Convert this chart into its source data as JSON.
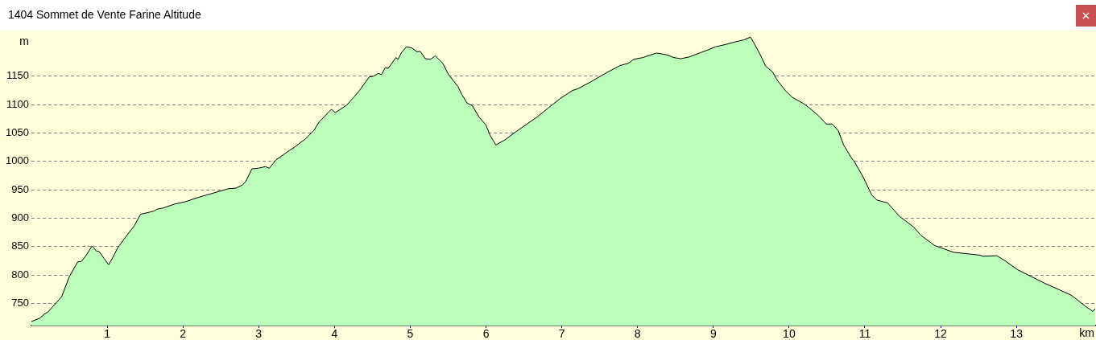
{
  "chart_data": {
    "type": "area",
    "title": "1404 Sommet de Vente Farine Altitude",
    "xlabel": "km",
    "ylabel": "m",
    "color": "#bbffbb",
    "x": [
      0.0,
      0.11,
      0.17,
      0.22,
      0.4,
      0.5,
      0.61,
      0.66,
      0.72,
      0.8,
      0.86,
      0.89,
      0.96,
      1.02,
      1.07,
      1.14,
      1.25,
      1.36,
      1.44,
      1.57,
      1.62,
      1.66,
      1.74,
      1.89,
      2.03,
      2.21,
      2.42,
      2.6,
      2.7,
      2.79,
      2.83,
      2.91,
      2.99,
      3.09,
      3.14,
      3.23,
      3.38,
      3.48,
      3.62,
      3.73,
      3.8,
      3.96,
      4.01,
      4.16,
      4.26,
      4.33,
      4.46,
      4.51,
      4.58,
      4.62,
      4.67,
      4.71,
      4.81,
      4.84,
      4.88,
      4.95,
      5.02,
      5.09,
      5.13,
      5.2,
      5.27,
      5.33,
      5.43,
      5.5,
      5.63,
      5.68,
      5.75,
      5.82,
      5.91,
      6.0,
      6.05,
      6.13,
      6.25,
      6.39,
      6.53,
      6.67,
      6.82,
      6.98,
      7.14,
      7.21,
      7.38,
      7.6,
      7.77,
      7.88,
      7.95,
      8.07,
      8.25,
      8.38,
      8.48,
      8.57,
      8.68,
      8.84,
      8.94,
      9.03,
      9.16,
      9.3,
      9.4,
      9.49,
      9.53,
      9.62,
      9.69,
      9.78,
      9.85,
      9.95,
      10.04,
      10.19,
      10.29,
      10.4,
      10.49,
      10.57,
      10.65,
      10.72,
      10.82,
      10.86,
      10.98,
      11.09,
      11.16,
      11.3,
      11.46,
      11.64,
      11.74,
      11.92,
      12.17,
      12.52,
      12.56,
      12.74,
      12.84,
      13.02,
      13.2,
      13.38,
      13.55,
      13.73,
      13.91,
      14.01,
      14.04
    ],
    "values": [
      718,
      724,
      731,
      735,
      762,
      797,
      823,
      824,
      834,
      851,
      842,
      842,
      829,
      818,
      830,
      848,
      868,
      887,
      907,
      911,
      913,
      916,
      918,
      925,
      929,
      937,
      945,
      952,
      953,
      959,
      965,
      987,
      988,
      991,
      988,
      1003,
      1017,
      1026,
      1040,
      1055,
      1070,
      1092,
      1086,
      1099,
      1114,
      1125,
      1149,
      1150,
      1155,
      1153,
      1165,
      1164,
      1183,
      1180,
      1191,
      1202,
      1200,
      1193,
      1194,
      1181,
      1180,
      1186,
      1173,
      1154,
      1132,
      1118,
      1103,
      1098,
      1078,
      1064,
      1047,
      1029,
      1038,
      1052,
      1065,
      1078,
      1094,
      1111,
      1125,
      1128,
      1140,
      1157,
      1169,
      1173,
      1180,
      1183,
      1191,
      1188,
      1183,
      1181,
      1184,
      1192,
      1197,
      1202,
      1206,
      1211,
      1214,
      1219,
      1210,
      1188,
      1168,
      1158,
      1142,
      1125,
      1113,
      1102,
      1092,
      1079,
      1066,
      1066,
      1054,
      1029,
      1007,
      1000,
      972,
      941,
      932,
      927,
      903,
      885,
      870,
      852,
      840,
      835,
      833,
      834,
      826,
      809,
      797,
      785,
      775,
      764,
      745,
      736,
      741
    ],
    "xlim": [
      0,
      14.04
    ],
    "xticks": [
      1,
      2,
      3,
      4,
      5,
      6,
      7,
      8,
      9,
      10,
      11,
      12,
      13
    ],
    "ylim": [
      711,
      1232
    ],
    "yticks": [
      750,
      800,
      850,
      900,
      950,
      1000,
      1050,
      1100,
      1150
    ],
    "grid": "y"
  }
}
